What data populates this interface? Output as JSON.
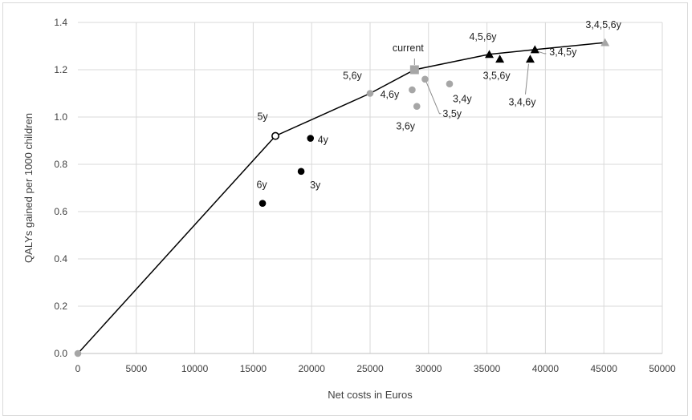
{
  "chart_data": {
    "type": "scatter",
    "xlabel": "Net costs in Euros",
    "ylabel": "QALYs gained per 1000 children",
    "xlim": [
      0,
      50000
    ],
    "ylim": [
      0,
      1.4
    ],
    "x_ticks": [
      "0",
      "5000",
      "10000",
      "15000",
      "20000",
      "25000",
      "30000",
      "35000",
      "40000",
      "45000",
      "50000"
    ],
    "y_ticks": [
      "0.0",
      "0.2",
      "0.4",
      "0.6",
      "0.8",
      "1.0",
      "1.2",
      "1.4"
    ],
    "grid": true,
    "frontier": [
      {
        "x": 0,
        "y": 0
      },
      {
        "x": 16900,
        "y": 0.92
      },
      {
        "x": 25000,
        "y": 1.1
      },
      {
        "x": 28800,
        "y": 1.2
      },
      {
        "x": 35200,
        "y": 1.265
      },
      {
        "x": 39100,
        "y": 1.285
      },
      {
        "x": 45100,
        "y": 1.315
      }
    ],
    "points": [
      {
        "label": "",
        "x": 0,
        "y": 0,
        "marker": "circle",
        "color": "#a6a6a6"
      },
      {
        "label": "5y",
        "x": 16900,
        "y": 0.92,
        "marker": "circle-open",
        "color": "#000000"
      },
      {
        "label": "6y",
        "x": 15800,
        "y": 0.635,
        "marker": "circle",
        "color": "#000000"
      },
      {
        "label": "3y",
        "x": 19100,
        "y": 0.77,
        "marker": "circle",
        "color": "#000000"
      },
      {
        "label": "4y",
        "x": 19900,
        "y": 0.91,
        "marker": "circle",
        "color": "#000000"
      },
      {
        "label": "5,6y",
        "x": 25000,
        "y": 1.1,
        "marker": "circle",
        "color": "#a6a6a6"
      },
      {
        "label": "4,6y",
        "x": 28600,
        "y": 1.115,
        "marker": "circle",
        "color": "#a6a6a6"
      },
      {
        "label": "3,6y",
        "x": 29000,
        "y": 1.045,
        "marker": "circle",
        "color": "#a6a6a6"
      },
      {
        "label": "3,5y",
        "x": 29700,
        "y": 1.16,
        "marker": "circle",
        "color": "#a6a6a6"
      },
      {
        "label": "3,4y",
        "x": 31800,
        "y": 1.14,
        "marker": "circle",
        "color": "#a6a6a6"
      },
      {
        "label": "current",
        "x": 28800,
        "y": 1.2,
        "marker": "square",
        "color": "#a6a6a6"
      },
      {
        "label": "4,5,6y",
        "x": 35200,
        "y": 1.265,
        "marker": "triangle",
        "color": "#000000"
      },
      {
        "label": "3,5,6y",
        "x": 36100,
        "y": 1.245,
        "marker": "triangle",
        "color": "#000000"
      },
      {
        "label": "3,4,6y",
        "x": 38700,
        "y": 1.245,
        "marker": "triangle",
        "color": "#000000"
      },
      {
        "label": "3,4,5y",
        "x": 39100,
        "y": 1.285,
        "marker": "triangle",
        "color": "#000000"
      },
      {
        "label": "3,4,5,6y",
        "x": 45100,
        "y": 1.315,
        "marker": "triangle",
        "color": "#a6a6a6"
      }
    ]
  }
}
